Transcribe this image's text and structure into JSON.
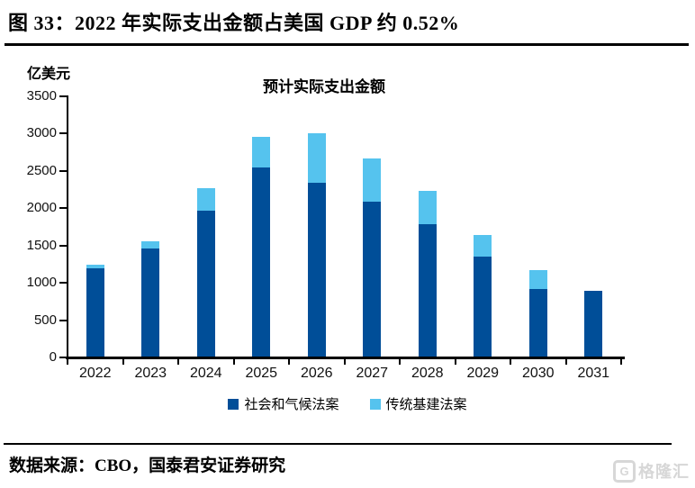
{
  "header": {
    "title": "图  33：2022 年实际支出金额占美国 GDP 约 0.52%"
  },
  "chart_data": {
    "type": "bar",
    "stacked": true,
    "title": "预计实际支出金额",
    "unit_label": "亿美元",
    "categories": [
      "2022",
      "2023",
      "2024",
      "2025",
      "2026",
      "2027",
      "2028",
      "2029",
      "2030",
      "2031"
    ],
    "series": [
      {
        "name": "社会和气候法案",
        "color": "#004E98",
        "values": [
          1180,
          1450,
          1950,
          2540,
          2330,
          2070,
          1770,
          1340,
          910,
          880
        ]
      },
      {
        "name": "传统基建法案",
        "color": "#55C3EE",
        "values": [
          50,
          90,
          310,
          410,
          660,
          590,
          450,
          290,
          250,
          0
        ]
      }
    ],
    "ylim": [
      0,
      3500
    ],
    "ytick_step": 500,
    "grid": false,
    "legend_position": "bottom",
    "axis_color": "#000000"
  },
  "footer": {
    "source": "数据来源：CBO，国泰君安证券研究",
    "watermark_letter": "G",
    "watermark": "格隆汇"
  }
}
